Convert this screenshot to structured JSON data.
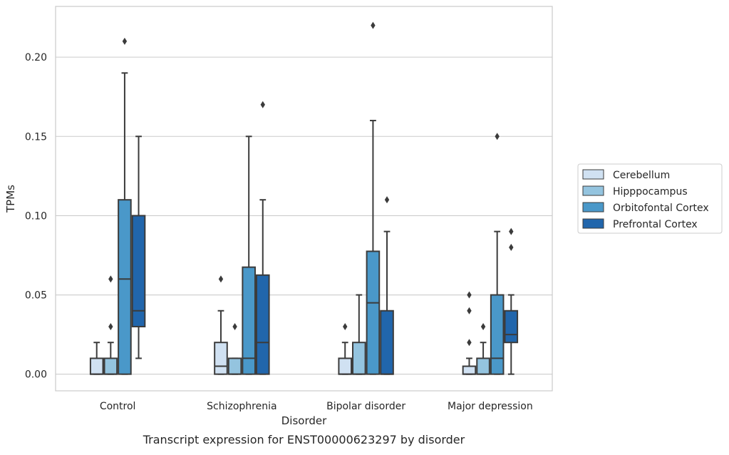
{
  "chart_data": {
    "type": "box",
    "xlabel": "Disorder",
    "ylabel": "TPMs",
    "caption": "Transcript expression for ENST00000623297 by disorder",
    "ylim": [
      -0.0105,
      0.232
    ],
    "yticks": [
      0.0,
      0.05,
      0.1,
      0.15,
      0.2
    ],
    "ytick_labels": [
      "0.00",
      "0.05",
      "0.10",
      "0.15",
      "0.20"
    ],
    "grid": "y",
    "legend_position": "right",
    "categories": [
      "Control",
      "Schizophrenia",
      "Bipolar disorder",
      "Major depression"
    ],
    "series": [
      {
        "name": "Cerebellum",
        "color": "#d0e1f2",
        "boxes": [
          {
            "whisker_low": 0.0,
            "q1": 0.0,
            "median": 0.0,
            "q3": 0.01,
            "whisker_high": 0.02,
            "outliers": []
          },
          {
            "whisker_low": 0.0,
            "q1": 0.0,
            "median": 0.005,
            "q3": 0.02,
            "whisker_high": 0.04,
            "outliers": [
              0.06
            ]
          },
          {
            "whisker_low": 0.0,
            "q1": 0.0,
            "median": 0.0,
            "q3": 0.01,
            "whisker_high": 0.02,
            "outliers": [
              0.03
            ]
          },
          {
            "whisker_low": 0.0,
            "q1": 0.0,
            "median": 0.0,
            "q3": 0.005,
            "whisker_high": 0.01,
            "outliers": [
              0.02,
              0.04,
              0.05
            ]
          }
        ]
      },
      {
        "name": "Hipppocampus",
        "color": "#94c4df",
        "boxes": [
          {
            "whisker_low": 0.0,
            "q1": 0.0,
            "median": 0.0,
            "q3": 0.01,
            "whisker_high": 0.02,
            "outliers": [
              0.03,
              0.06
            ]
          },
          {
            "whisker_low": 0.0,
            "q1": 0.0,
            "median": 0.0,
            "q3": 0.01,
            "whisker_high": 0.01,
            "outliers": [
              0.03
            ]
          },
          {
            "whisker_low": 0.0,
            "q1": 0.0,
            "median": 0.0,
            "q3": 0.02,
            "whisker_high": 0.05,
            "outliers": []
          },
          {
            "whisker_low": 0.0,
            "q1": 0.0,
            "median": 0.0,
            "q3": 0.01,
            "whisker_high": 0.02,
            "outliers": [
              0.03
            ]
          }
        ]
      },
      {
        "name": "Orbitofontal Cortex",
        "color": "#4a98c9",
        "boxes": [
          {
            "whisker_low": 0.0,
            "q1": 0.0,
            "median": 0.06,
            "q3": 0.11,
            "whisker_high": 0.19,
            "outliers": [
              0.21
            ]
          },
          {
            "whisker_low": 0.0,
            "q1": 0.0,
            "median": 0.01,
            "q3": 0.0675,
            "whisker_high": 0.15,
            "outliers": []
          },
          {
            "whisker_low": 0.0,
            "q1": 0.0,
            "median": 0.045,
            "q3": 0.0775,
            "whisker_high": 0.16,
            "outliers": [
              0.22
            ]
          },
          {
            "whisker_low": 0.0,
            "q1": 0.0,
            "median": 0.01,
            "q3": 0.05,
            "whisker_high": 0.09,
            "outliers": [
              0.15
            ]
          }
        ]
      },
      {
        "name": "Prefrontal Cortex",
        "color": "#2166ac",
        "boxes": [
          {
            "whisker_low": 0.01,
            "q1": 0.03,
            "median": 0.04,
            "q3": 0.1,
            "whisker_high": 0.15,
            "outliers": []
          },
          {
            "whisker_low": 0.0,
            "q1": 0.0,
            "median": 0.02,
            "q3": 0.0625,
            "whisker_high": 0.11,
            "outliers": [
              0.17
            ]
          },
          {
            "whisker_low": 0.0,
            "q1": 0.0,
            "median": 0.0,
            "q3": 0.04,
            "whisker_high": 0.09,
            "outliers": [
              0.11
            ]
          },
          {
            "whisker_low": 0.0,
            "q1": 0.02,
            "median": 0.025,
            "q3": 0.04,
            "whisker_high": 0.05,
            "outliers": [
              0.08,
              0.09
            ]
          }
        ]
      }
    ]
  }
}
